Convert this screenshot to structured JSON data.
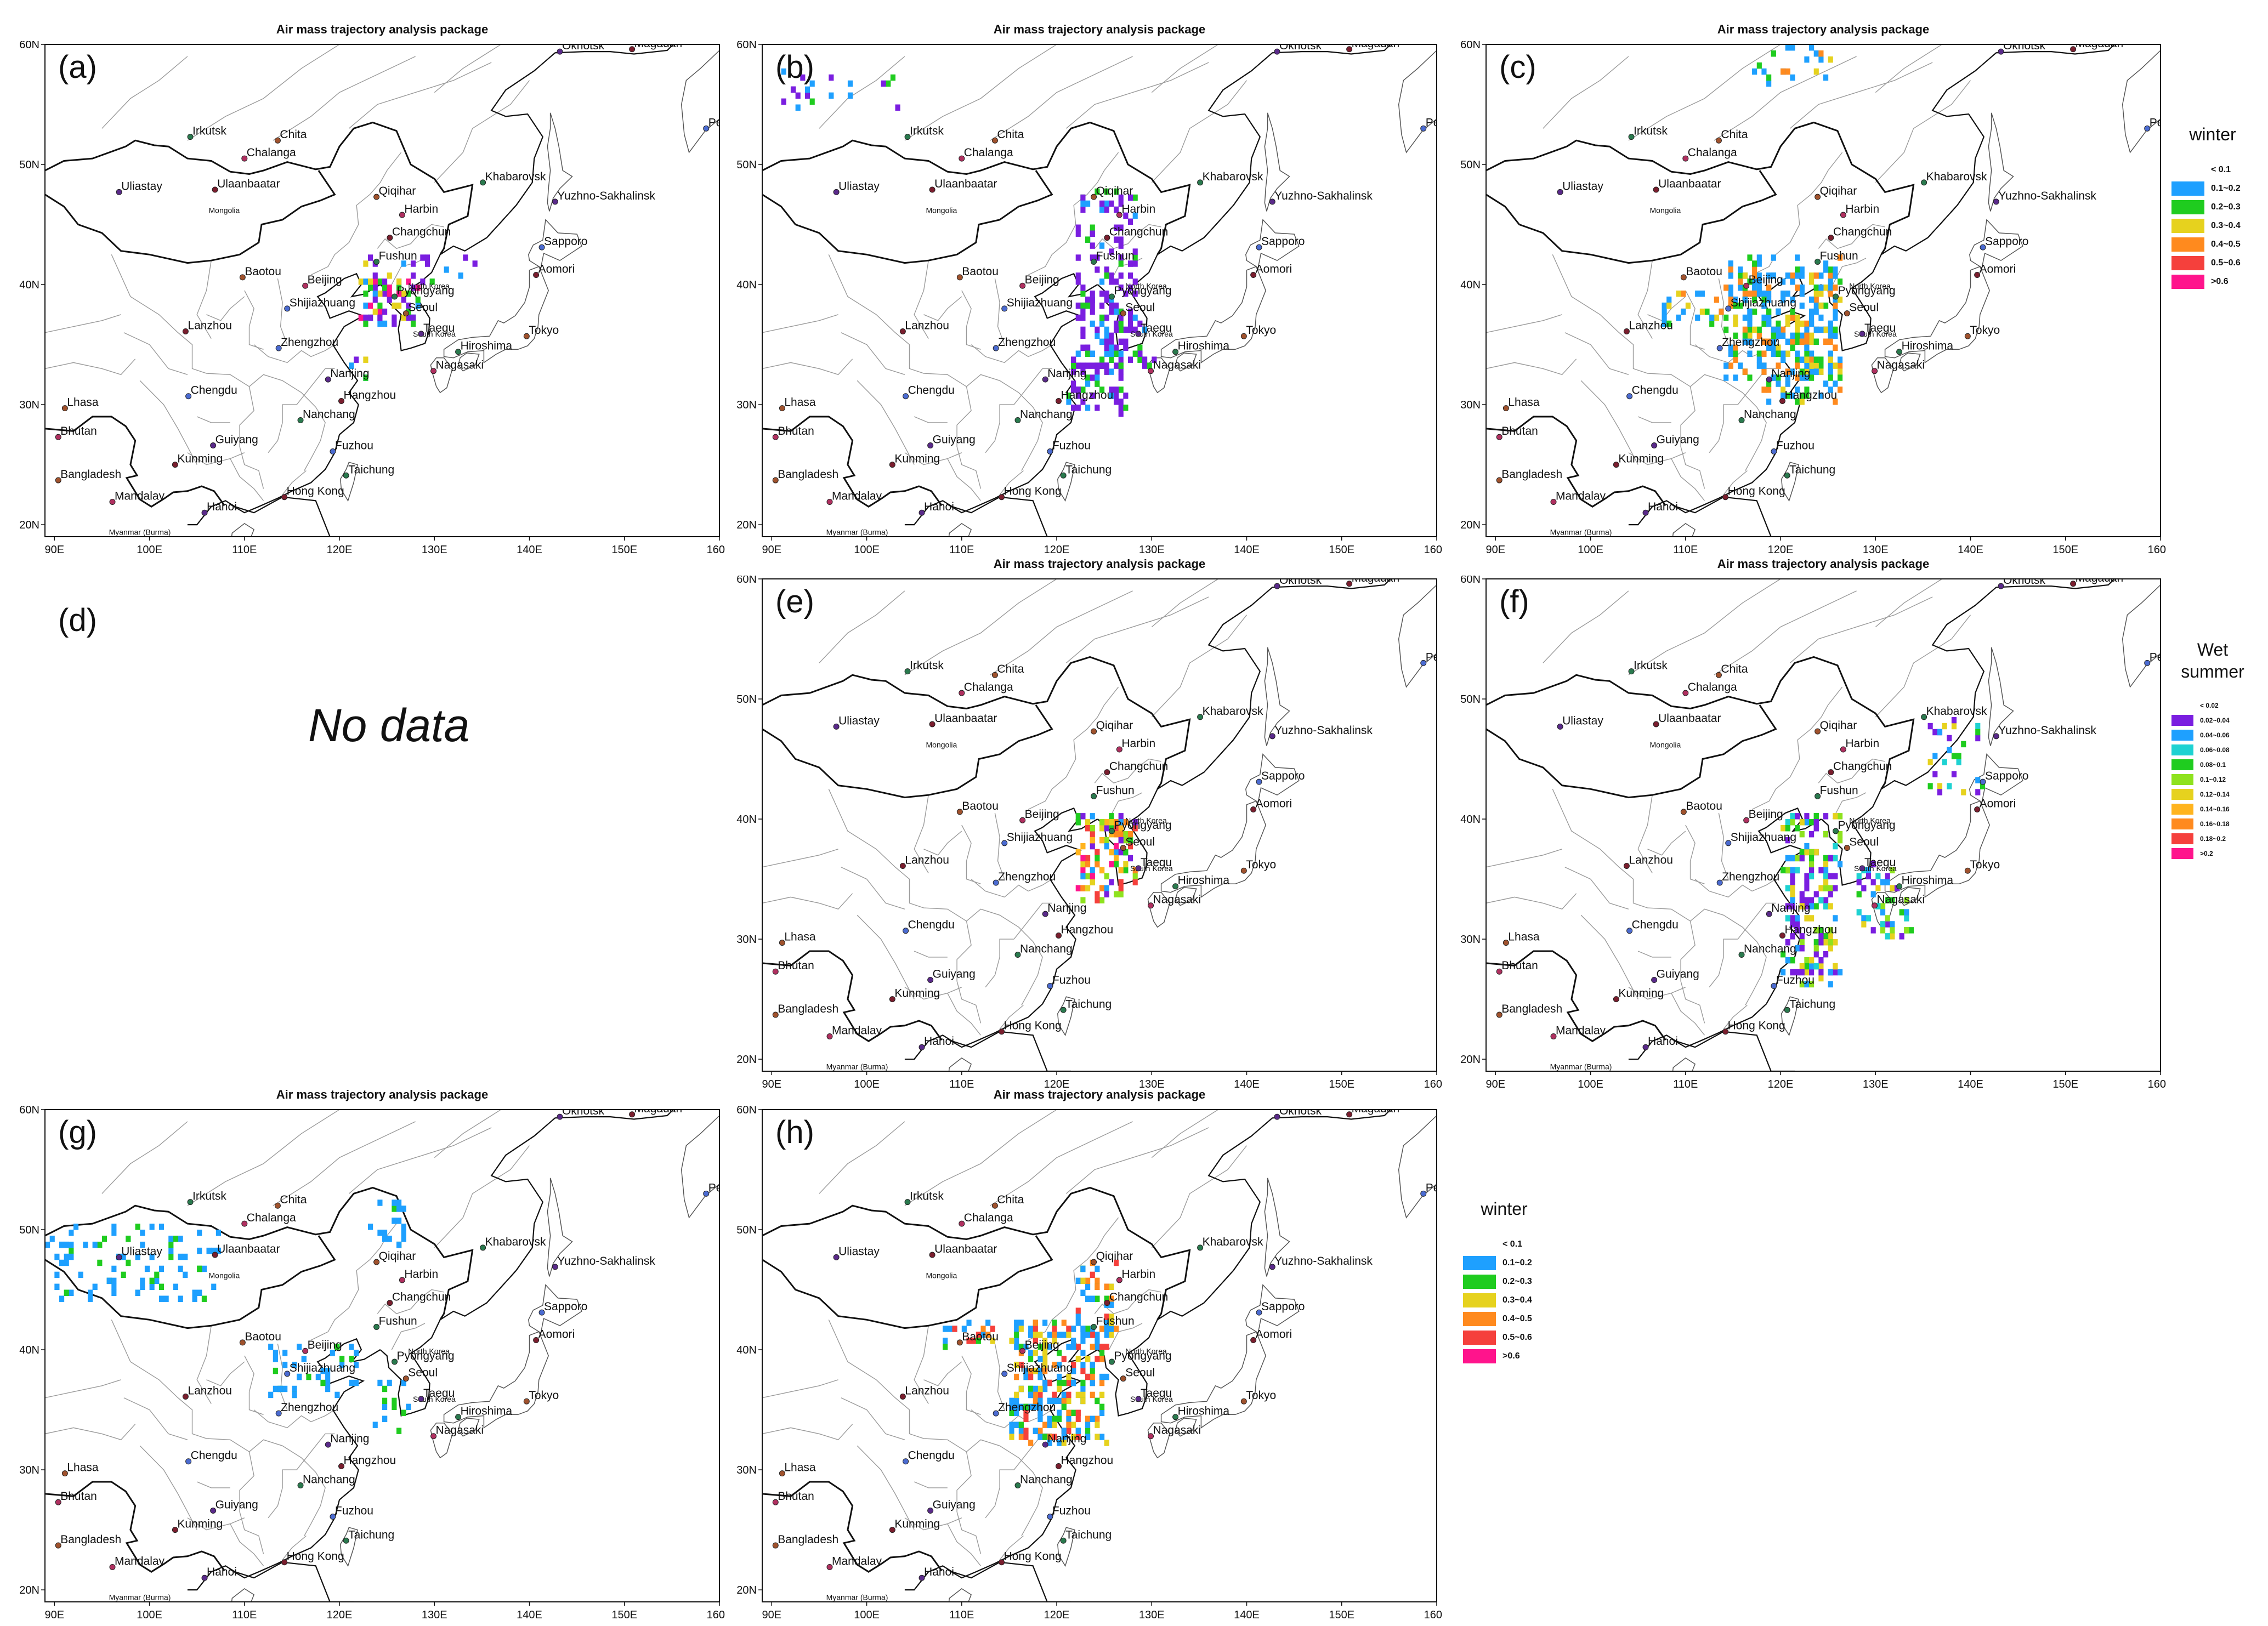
{
  "figure": {
    "panel_title": "Air mass trajectory analysis package",
    "no_data_text": "No data",
    "lat_ticks": [
      "60N",
      "50N",
      "40N",
      "30N",
      "20N"
    ],
    "lon_ticks": [
      "90E",
      "100E",
      "110E",
      "120E",
      "130E",
      "140E",
      "150E",
      "160E"
    ],
    "map_extent": {
      "lon": [
        89,
        160
      ],
      "lat": [
        19,
        60
      ]
    }
  },
  "cities": [
    {
      "name": "Okhotsk",
      "lon": 143.2,
      "lat": 59.4
    },
    {
      "name": "Magadan",
      "lon": 150.8,
      "lat": 59.6
    },
    {
      "name": "Petropavloski-Ka",
      "lon": 158.6,
      "lat": 53.0
    },
    {
      "name": "Irkutsk",
      "lon": 104.3,
      "lat": 52.3
    },
    {
      "name": "Chita",
      "lon": 113.5,
      "lat": 52.0
    },
    {
      "name": "Chalanga",
      "lon": 110.0,
      "lat": 50.5
    },
    {
      "name": "Uliastay",
      "lon": 96.8,
      "lat": 47.7
    },
    {
      "name": "Ulaanbaatar",
      "lon": 106.9,
      "lat": 47.9
    },
    {
      "name": "Mongolia",
      "lon": 106.0,
      "lat": 46.6
    },
    {
      "name": "Khabarovsk",
      "lon": 135.1,
      "lat": 48.5
    },
    {
      "name": "Qiqihar",
      "lon": 123.9,
      "lat": 47.3
    },
    {
      "name": "Harbin",
      "lon": 126.6,
      "lat": 45.8
    },
    {
      "name": "Yuzhno-Sakhalinsk",
      "lon": 142.7,
      "lat": 46.9
    },
    {
      "name": "Changchun",
      "lon": 125.3,
      "lat": 43.9
    },
    {
      "name": "Sapporo",
      "lon": 141.3,
      "lat": 43.1
    },
    {
      "name": "Fushun",
      "lon": 123.9,
      "lat": 41.9
    },
    {
      "name": "Baotou",
      "lon": 109.8,
      "lat": 40.6
    },
    {
      "name": "Beijing",
      "lon": 116.4,
      "lat": 39.9
    },
    {
      "name": "North Korea",
      "lon": 127.0,
      "lat": 40.3
    },
    {
      "name": "Aomori",
      "lon": 140.7,
      "lat": 40.8
    },
    {
      "name": "Shijiazhuang",
      "lon": 114.5,
      "lat": 38.0
    },
    {
      "name": "Pyongyang",
      "lon": 125.8,
      "lat": 39.0
    },
    {
      "name": "Seoul",
      "lon": 127.0,
      "lat": 37.6
    },
    {
      "name": "South Korea",
      "lon": 127.5,
      "lat": 36.3
    },
    {
      "name": "Taegu",
      "lon": 128.6,
      "lat": 35.9
    },
    {
      "name": "Lanzhou",
      "lon": 103.8,
      "lat": 36.1
    },
    {
      "name": "Zhengzhou",
      "lon": 113.6,
      "lat": 34.7
    },
    {
      "name": "Hiroshima",
      "lon": 132.5,
      "lat": 34.4
    },
    {
      "name": "Tokyo",
      "lon": 139.7,
      "lat": 35.7
    },
    {
      "name": "Nagasaki",
      "lon": 129.9,
      "lat": 32.8
    },
    {
      "name": "Nanjing",
      "lon": 118.8,
      "lat": 32.1
    },
    {
      "name": "Hangzhou",
      "lon": 120.2,
      "lat": 30.3
    },
    {
      "name": "Chengdu",
      "lon": 104.1,
      "lat": 30.7
    },
    {
      "name": "Nanchang",
      "lon": 115.9,
      "lat": 28.7
    },
    {
      "name": "Lhasa",
      "lon": 91.1,
      "lat": 29.7
    },
    {
      "name": "Bhutan",
      "lon": 90.4,
      "lat": 27.3
    },
    {
      "name": "Guiyang",
      "lon": 106.7,
      "lat": 26.6
    },
    {
      "name": "Kunming",
      "lon": 102.7,
      "lat": 25.0
    },
    {
      "name": "Fuzhou",
      "lon": 119.3,
      "lat": 26.1
    },
    {
      "name": "Taichung",
      "lon": 120.7,
      "lat": 24.1
    },
    {
      "name": "Bangladesh",
      "lon": 90.4,
      "lat": 23.7
    },
    {
      "name": "Mandalay",
      "lon": 96.1,
      "lat": 21.9
    },
    {
      "name": "Hanoi",
      "lon": 105.8,
      "lat": 21.0
    },
    {
      "name": "Hong Kong",
      "lon": 114.2,
      "lat": 22.3
    },
    {
      "name": "Myanmar (Burma)",
      "lon": 95.5,
      "lat": 19.8
    }
  ],
  "panels": [
    {
      "id": "a",
      "label": "(a)",
      "row": 0,
      "col": 0,
      "scheme": "winter"
    },
    {
      "id": "b",
      "label": "(b)",
      "row": 0,
      "col": 1,
      "scheme": "winter"
    },
    {
      "id": "c",
      "label": "(c)",
      "row": 0,
      "col": 2,
      "scheme": "winter"
    },
    {
      "id": "d",
      "label": "(d)",
      "row": 1,
      "col": 0,
      "scheme": "none"
    },
    {
      "id": "e",
      "label": "(e)",
      "row": 1,
      "col": 1,
      "scheme": "wet"
    },
    {
      "id": "f",
      "label": "(f)",
      "row": 1,
      "col": 2,
      "scheme": "wet"
    },
    {
      "id": "g",
      "label": "(g)",
      "row": 2,
      "col": 0,
      "scheme": "winter"
    },
    {
      "id": "h",
      "label": "(h)",
      "row": 2,
      "col": 1,
      "scheme": "winter"
    }
  ],
  "legends": [
    {
      "id": "winter-top",
      "title_lines": [
        "winter"
      ],
      "items": [
        {
          "label": "< 0.1",
          "color": ""
        },
        {
          "label": "0.1~0.2",
          "color": "#1ea0ff"
        },
        {
          "label": "0.2~0.3",
          "color": "#1fcc1f"
        },
        {
          "label": "0.3~0.4",
          "color": "#e6d21e"
        },
        {
          "label": "0.4~0.5",
          "color": "#ff8a1e"
        },
        {
          "label": "0.5~0.6",
          "color": "#f5403c"
        },
        {
          "label": ">0.6",
          "color": "#ff148c"
        }
      ]
    },
    {
      "id": "wet-summer",
      "title_lines": [
        "Wet",
        "summer"
      ],
      "items": [
        {
          "label": "< 0.02",
          "color": ""
        },
        {
          "label": "0.02~0.04",
          "color": "#7a1ee0"
        },
        {
          "label": "0.04~0.06",
          "color": "#1ea0ff"
        },
        {
          "label": "0.06~0.08",
          "color": "#1ed2d2"
        },
        {
          "label": "0.08~0.1",
          "color": "#1fcc1f"
        },
        {
          "label": "0.1~0.12",
          "color": "#8ee21e"
        },
        {
          "label": "0.12~0.14",
          "color": "#e6d21e"
        },
        {
          "label": "0.14~0.16",
          "color": "#ffb41e"
        },
        {
          "label": "0.16~0.18",
          "color": "#ff8a1e"
        },
        {
          "label": "0.18~0.2",
          "color": "#f5403c"
        },
        {
          "label": ">0.2",
          "color": "#ff148c"
        }
      ]
    },
    {
      "id": "winter-bottom",
      "title_lines": [
        "winter"
      ],
      "items": [
        {
          "label": "< 0.1",
          "color": ""
        },
        {
          "label": "0.1~0.2",
          "color": "#1ea0ff"
        },
        {
          "label": "0.2~0.3",
          "color": "#1fcc1f"
        },
        {
          "label": "0.3~0.4",
          "color": "#e6d21e"
        },
        {
          "label": "0.4~0.5",
          "color": "#ff8a1e"
        },
        {
          "label": "0.5~0.6",
          "color": "#f5403c"
        },
        {
          "label": ">0.6",
          "color": "#ff148c"
        }
      ]
    }
  ]
}
